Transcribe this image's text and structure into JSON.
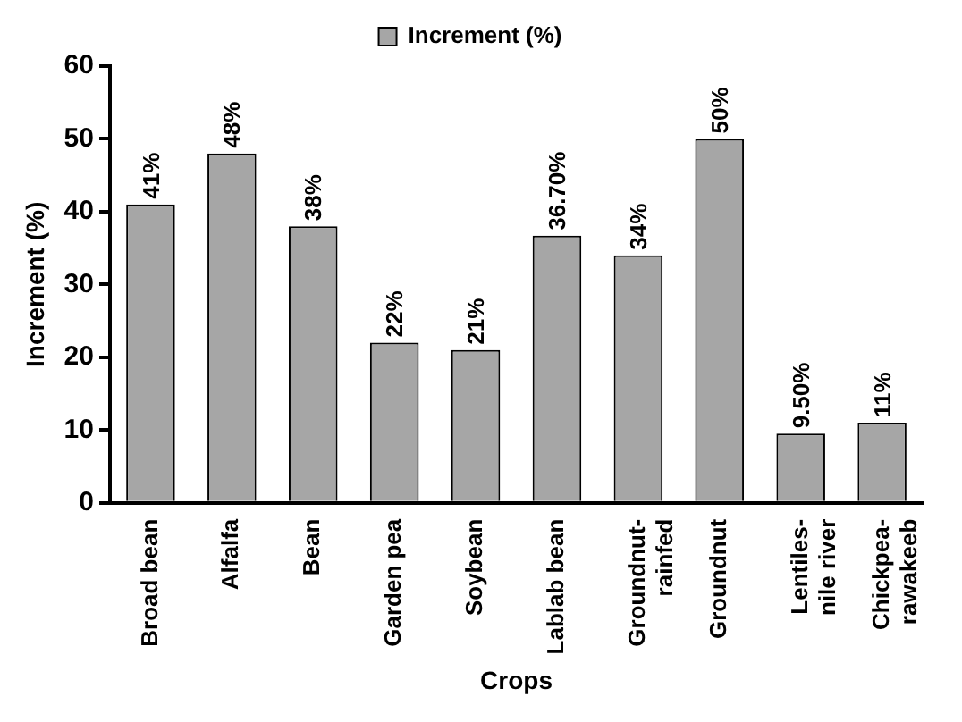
{
  "chart_data": {
    "type": "bar",
    "xlabel": "Crops",
    "ylabel": "Increment (%)",
    "categories": [
      "Broad bean",
      "Alfalfa",
      "Bean",
      "Garden pea",
      "Soybean",
      "Lablab bean",
      "Groundnut-rainfed",
      "Groundnut",
      "Lentiles-nile river",
      "Chickpea-rawakeeb"
    ],
    "series": [
      {
        "name": "Increment (%)",
        "color": "#a6a6a6",
        "values": [
          41,
          48,
          38,
          22,
          21,
          36.7,
          34,
          50,
          9.5,
          11
        ],
        "value_labels": [
          "41%",
          "48%",
          "38%",
          "22%",
          "21%",
          "36.70%",
          "34%",
          "50%",
          "9.50%",
          "11%"
        ]
      }
    ],
    "ylim": [
      0,
      60
    ],
    "yticks": [
      0,
      10,
      20,
      30,
      40,
      50,
      60
    ],
    "grid": false,
    "legend": "top"
  }
}
